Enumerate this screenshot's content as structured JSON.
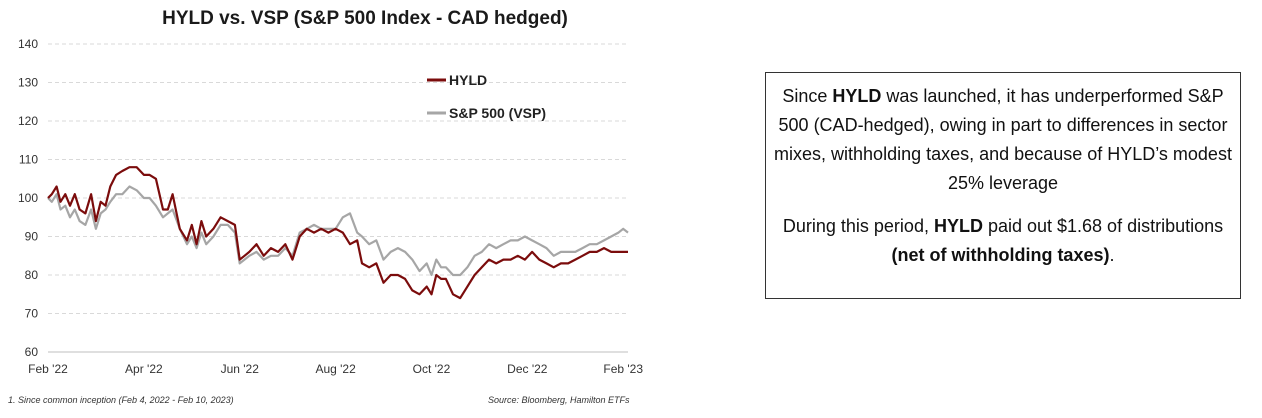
{
  "chart_title": "HYLD vs. VSP (S&P 500 Index - CAD hedged)",
  "footnote": "1. Since common inception (Feb 4, 2022 - Feb 10, 2023)",
  "source": "Source: Bloomberg, Hamilton ETFs",
  "colors": {
    "hyld": "#7b0c0c",
    "vsp": "#a6a6a6",
    "grid": "#d9d9d9"
  },
  "callout": {
    "p1_a": "Since ",
    "p1_b": "HYLD",
    "p1_c": " was launched, it has underperformed S&P 500 (CAD-hedged), owing in part to differences in sector mixes, withholding taxes, and because of HYLD’s modest 25% leverage",
    "p2_a": "During this period, ",
    "p2_b": "HYLD",
    "p2_c": " paid out $1.68 of distributions ",
    "p2_d": "(net of withholding taxes)",
    "p2_e": "."
  },
  "chart_data": {
    "type": "line",
    "title": "HYLD vs. VSP (S&P 500 Index - CAD hedged)",
    "xlabel": "",
    "ylabel": "",
    "ylim": [
      60,
      140
    ],
    "yticks": [
      60,
      70,
      80,
      90,
      100,
      110,
      120,
      130,
      140
    ],
    "xlim": [
      "Feb '22",
      "Feb '23"
    ],
    "xticks": [
      {
        "pos": 0,
        "label": "Feb '22"
      },
      {
        "pos": 2,
        "label": "Apr '22"
      },
      {
        "pos": 4,
        "label": "Jun '22"
      },
      {
        "pos": 6,
        "label": "Aug '22"
      },
      {
        "pos": 8,
        "label": "Oct '22"
      },
      {
        "pos": 10,
        "label": "Dec '22"
      },
      {
        "pos": 12,
        "label": "Feb '23"
      }
    ],
    "grid": "horizontal dashed",
    "legend_position": "top-center",
    "series": [
      {
        "name": "HYLD",
        "color": "#7b0c0c",
        "x": [
          0,
          0.08,
          0.18,
          0.26,
          0.36,
          0.46,
          0.56,
          0.66,
          0.78,
          0.9,
          1.0,
          1.1,
          1.2,
          1.3,
          1.42,
          1.55,
          1.7,
          1.85,
          2.0,
          2.12,
          2.25,
          2.4,
          2.5,
          2.6,
          2.75,
          2.9,
          3.0,
          3.1,
          3.2,
          3.3,
          3.45,
          3.6,
          3.75,
          3.9,
          4.0,
          4.1,
          4.2,
          4.35,
          4.5,
          4.65,
          4.8,
          4.95,
          5.1,
          5.25,
          5.4,
          5.55,
          5.7,
          5.85,
          6.0,
          6.15,
          6.3,
          6.45,
          6.55,
          6.7,
          6.85,
          7.0,
          7.15,
          7.3,
          7.45,
          7.6,
          7.75,
          7.9,
          8.0,
          8.1,
          8.2,
          8.3,
          8.45,
          8.6,
          8.75,
          8.9,
          9.05,
          9.2,
          9.35,
          9.5,
          9.65,
          9.8,
          9.95,
          10.1,
          10.25,
          10.4,
          10.55,
          10.7,
          10.85,
          11.0,
          11.15,
          11.3,
          11.45,
          11.6,
          11.75,
          11.9,
          12.0,
          12.1
        ],
        "y": [
          100,
          101,
          103,
          99,
          101,
          98,
          101,
          97,
          96,
          101,
          94,
          99,
          98,
          103,
          106,
          107,
          108,
          108,
          106,
          106,
          105,
          97,
          97,
          101,
          92,
          89,
          93,
          88,
          94,
          90,
          92,
          95,
          94,
          93,
          84,
          85,
          86,
          88,
          85,
          87,
          86,
          88,
          84,
          90,
          92,
          91,
          92,
          91,
          92,
          91,
          88,
          89,
          83,
          82,
          83,
          78,
          80,
          80,
          79,
          76,
          75,
          77,
          75,
          80,
          79,
          79,
          75,
          74,
          77,
          80,
          82,
          84,
          83,
          84,
          84,
          85,
          84,
          86,
          84,
          83,
          82,
          83,
          83,
          84,
          85,
          86,
          86,
          87,
          86,
          86,
          86,
          86
        ]
      },
      {
        "name": "S&P 500 (VSP)",
        "color": "#a6a6a6",
        "x": [
          0,
          0.08,
          0.18,
          0.26,
          0.36,
          0.46,
          0.56,
          0.66,
          0.78,
          0.9,
          1.0,
          1.1,
          1.2,
          1.3,
          1.42,
          1.55,
          1.7,
          1.85,
          2.0,
          2.12,
          2.25,
          2.4,
          2.5,
          2.6,
          2.75,
          2.9,
          3.0,
          3.1,
          3.2,
          3.3,
          3.45,
          3.6,
          3.75,
          3.9,
          4.0,
          4.1,
          4.2,
          4.35,
          4.5,
          4.65,
          4.8,
          4.95,
          5.1,
          5.25,
          5.4,
          5.55,
          5.7,
          5.85,
          6.0,
          6.15,
          6.3,
          6.45,
          6.55,
          6.7,
          6.85,
          7.0,
          7.15,
          7.3,
          7.45,
          7.6,
          7.75,
          7.9,
          8.0,
          8.1,
          8.2,
          8.3,
          8.45,
          8.6,
          8.75,
          8.9,
          9.05,
          9.2,
          9.35,
          9.5,
          9.65,
          9.8,
          9.95,
          10.1,
          10.25,
          10.4,
          10.55,
          10.7,
          10.85,
          11.0,
          11.15,
          11.3,
          11.45,
          11.6,
          11.75,
          11.9,
          12.0,
          12.1
        ],
        "y": [
          100,
          99,
          101,
          97,
          98,
          95,
          97,
          94,
          93,
          97,
          92,
          96,
          97,
          99,
          101,
          101,
          103,
          102,
          100,
          100,
          98,
          95,
          96,
          97,
          92,
          88,
          90,
          87,
          91,
          88,
          90,
          93,
          93,
          91,
          83,
          84,
          85,
          86,
          84,
          85,
          85,
          87,
          85,
          91,
          92,
          93,
          92,
          92,
          92,
          95,
          96,
          91,
          90,
          88,
          89,
          84,
          86,
          87,
          86,
          84,
          81,
          83,
          80,
          84,
          82,
          82,
          80,
          80,
          82,
          85,
          86,
          88,
          87,
          88,
          89,
          89,
          90,
          89,
          88,
          87,
          85,
          86,
          86,
          86,
          87,
          88,
          88,
          89,
          90,
          91,
          92,
          91
        ]
      }
    ]
  }
}
